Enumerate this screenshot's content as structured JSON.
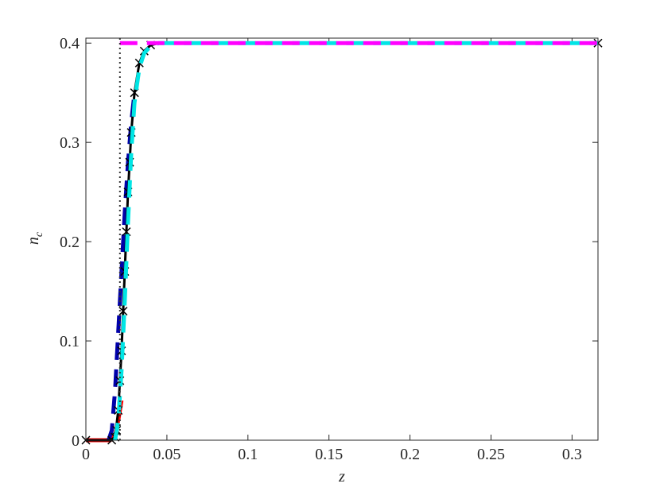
{
  "chart_data": {
    "type": "line",
    "xlabel": "z",
    "ylabel": "n",
    "ylabel_subscript": "c",
    "xlim": [
      0,
      0.316
    ],
    "ylim": [
      0,
      0.405
    ],
    "xticks": [
      0,
      0.05,
      0.1,
      0.15,
      0.2,
      0.25,
      0.3
    ],
    "yticks": [
      0,
      0.1,
      0.2,
      0.3,
      0.4
    ],
    "grid": false,
    "series": [
      {
        "color": "#ff0000",
        "style": "solid",
        "width": 5,
        "x": [
          0,
          0.005,
          0.01,
          0.015,
          0.018,
          0.02,
          0.022
        ],
        "values": [
          0,
          0,
          0,
          0,
          0.005,
          0.02,
          0.04
        ]
      },
      {
        "color": "#0000aa",
        "style": "dash",
        "width": 5,
        "x": [
          0.014,
          0.016,
          0.018,
          0.02,
          0.022,
          0.024,
          0.026,
          0.028,
          0.03
        ],
        "values": [
          0,
          0.01,
          0.05,
          0.11,
          0.17,
          0.23,
          0.28,
          0.32,
          0.35
        ]
      },
      {
        "color": "#000000",
        "style": "solid",
        "width": 3,
        "x": [
          0,
          0.005,
          0.01,
          0.015,
          0.018,
          0.02,
          0.022,
          0.024,
          0.026,
          0.028,
          0.03,
          0.033,
          0.036,
          0.04,
          0.045,
          0.05,
          0.1,
          0.2,
          0.316
        ],
        "values": [
          0,
          0,
          0,
          0,
          0.003,
          0.03,
          0.09,
          0.17,
          0.25,
          0.31,
          0.35,
          0.38,
          0.392,
          0.398,
          0.4,
          0.4,
          0.4,
          0.4,
          0.4
        ]
      },
      {
        "color": "#000000",
        "style": "marker",
        "width": 1.5,
        "x": [
          0,
          0.016,
          0.018,
          0.019,
          0.02,
          0.021,
          0.022,
          0.023,
          0.024,
          0.025,
          0.026,
          0.027,
          0.028,
          0.03,
          0.033,
          0.036,
          0.04,
          0.316
        ],
        "values": [
          0,
          0,
          0.003,
          0.01,
          0.03,
          0.06,
          0.09,
          0.13,
          0.17,
          0.21,
          0.25,
          0.28,
          0.31,
          0.35,
          0.38,
          0.392,
          0.398,
          0.4
        ]
      },
      {
        "color": "#00e5e5",
        "style": "dash",
        "width": 5,
        "x": [
          0.018,
          0.02,
          0.022,
          0.024,
          0.026,
          0.028,
          0.03,
          0.033,
          0.036,
          0.04,
          0.045,
          0.05,
          0.1,
          0.2,
          0.316
        ],
        "values": [
          0,
          0.02,
          0.07,
          0.14,
          0.22,
          0.29,
          0.34,
          0.375,
          0.39,
          0.397,
          0.4,
          0.4,
          0.4,
          0.4,
          0.4
        ]
      },
      {
        "color": "#ff00ff",
        "style": "dash",
        "width": 5,
        "x": [
          0.021,
          0.316
        ],
        "values": [
          0.4,
          0.4
        ]
      },
      {
        "color": "#333333",
        "style": "dot",
        "width": 2,
        "x": [
          0.021,
          0.021
        ],
        "values": [
          0,
          0.405
        ]
      }
    ]
  }
}
